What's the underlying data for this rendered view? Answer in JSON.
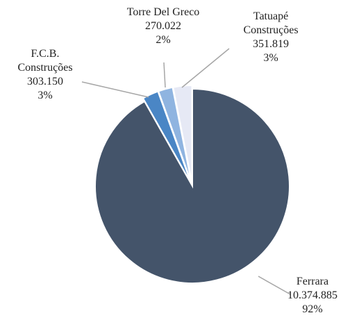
{
  "chart_data": {
    "type": "pie",
    "categories": [
      "Ferrara",
      "F.C.B. Construções",
      "Torre Del Greco",
      "Tatuapé Construções"
    ],
    "values": [
      10374885,
      303150,
      270022,
      351819
    ],
    "value_labels": [
      "10.374.885",
      "303.150",
      "270.022",
      "351.819"
    ],
    "percentages": [
      92,
      3,
      2,
      3
    ],
    "percentage_labels": [
      "92%",
      "3%",
      "2%",
      "3%"
    ],
    "colors": [
      "#44546a",
      "#4a86c5",
      "#8fb4e0",
      "#e6e9f5"
    ]
  }
}
